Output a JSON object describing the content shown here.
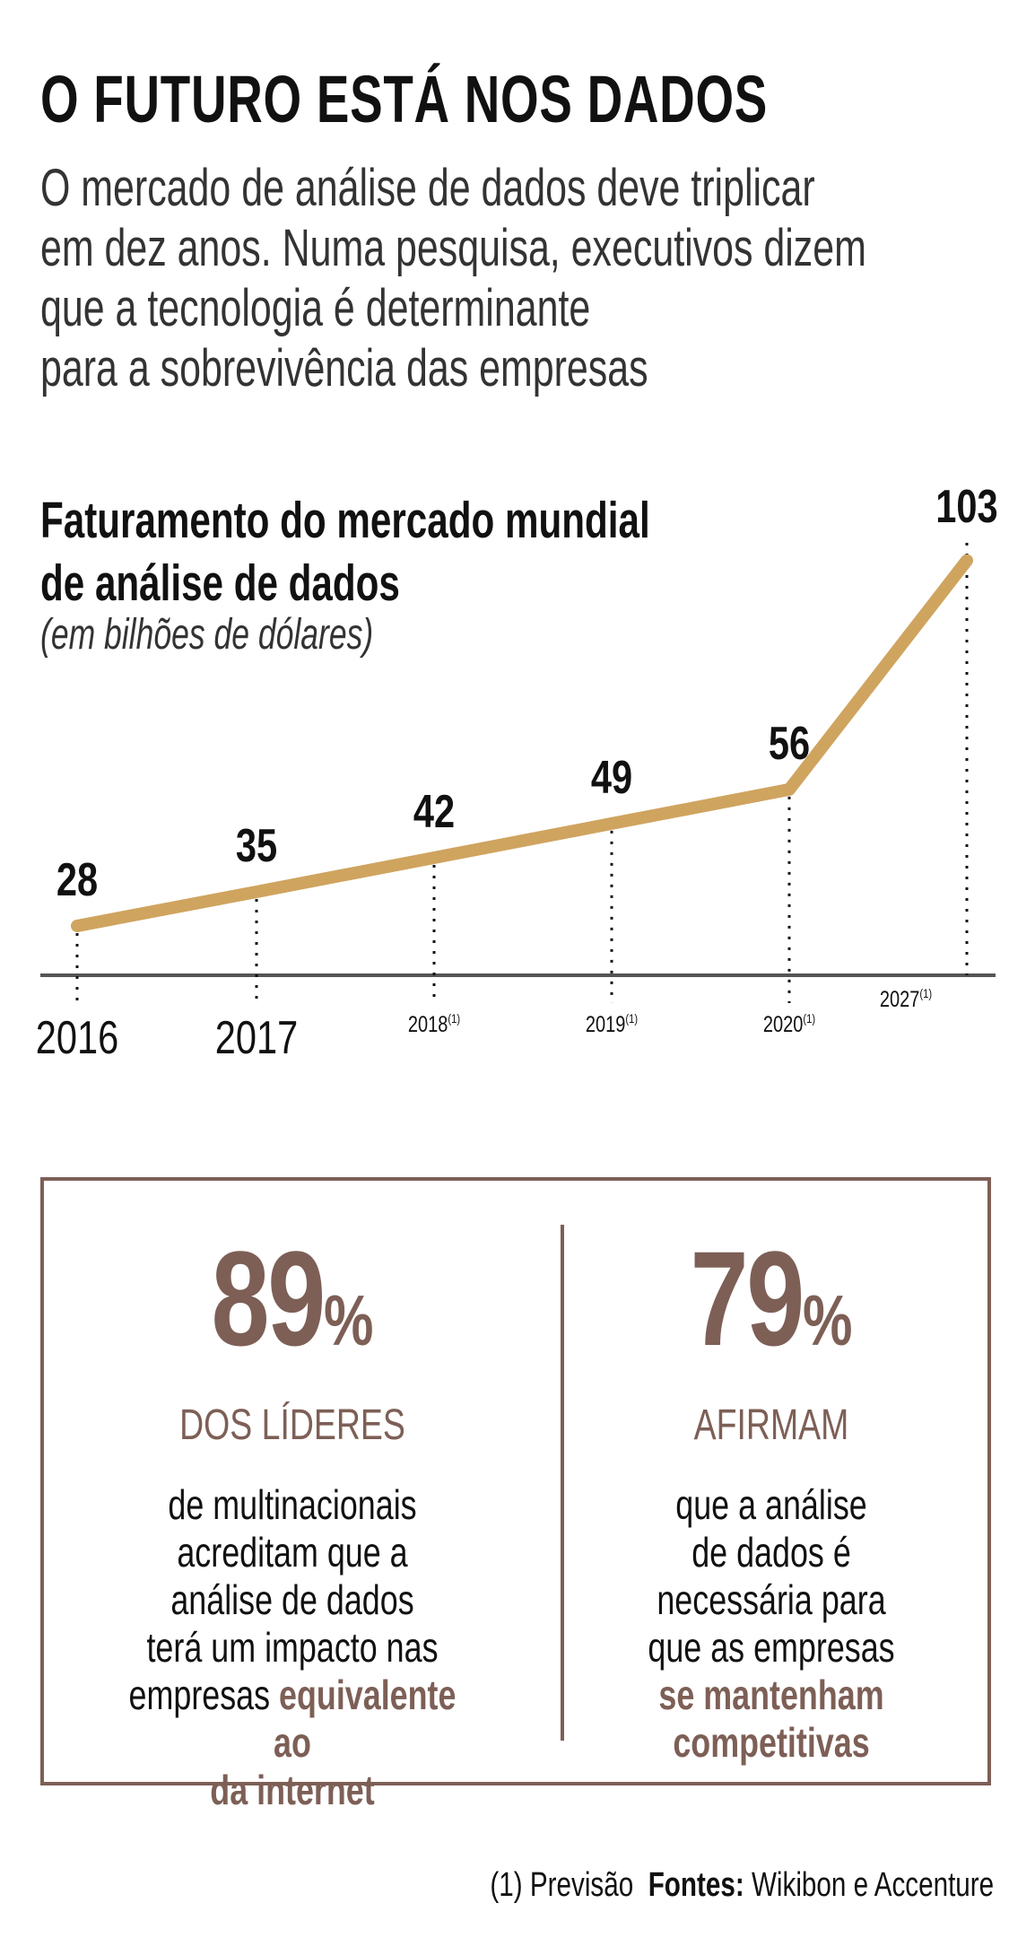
{
  "header": {
    "title": "O FUTURO ESTÁ NOS DADOS",
    "subtitle_lines": [
      "O mercado de análise de dados deve triplicar",
      "em dez anos. Numa pesquisa, executivos dizem",
      "que a tecnologia é determinante",
      "para a sobrevivência das empresas"
    ]
  },
  "chart_data": {
    "type": "line",
    "title_lines": [
      "Faturamento do mercado mundial",
      "de análise de dados"
    ],
    "unit": "(em bilhões de dólares)",
    "categories": [
      "2016",
      "2017",
      "2018",
      "2019",
      "2020",
      "2027"
    ],
    "category_notes": [
      "",
      "",
      "(1)",
      "(1)",
      "(1)",
      "(1)"
    ],
    "values": [
      28,
      35,
      42,
      49,
      56,
      103
    ],
    "data_labels": [
      "28",
      "35",
      "42",
      "49",
      "56",
      "103"
    ],
    "color": "#cfa45f",
    "xlabel": "",
    "ylabel": ""
  },
  "stats": [
    {
      "value": "89",
      "unit": "%",
      "kicker": "DOS LÍDERES",
      "lines": [
        [
          "de multinacionais",
          ""
        ],
        [
          "acreditam que a",
          ""
        ],
        [
          "análise de dados",
          ""
        ],
        [
          "terá um impacto nas",
          ""
        ],
        [
          "empresas ",
          "equivalente ao"
        ],
        [
          "",
          "da internet"
        ]
      ]
    },
    {
      "value": "79",
      "unit": "%",
      "kicker": "AFIRMAM",
      "lines": [
        [
          "que a análise",
          ""
        ],
        [
          "de dados é",
          ""
        ],
        [
          "necessária para",
          ""
        ],
        [
          "que as empresas",
          ""
        ],
        [
          "",
          "se mantenham"
        ],
        [
          "",
          "competitivas"
        ]
      ]
    }
  ],
  "footer": {
    "note": "(1) Previsão",
    "sources_label": "Fontes:",
    "sources": "Wikibon e Accenture"
  },
  "colors": {
    "accent": "#7d5f56",
    "line": "#cfa45f",
    "axis": "#555555"
  }
}
